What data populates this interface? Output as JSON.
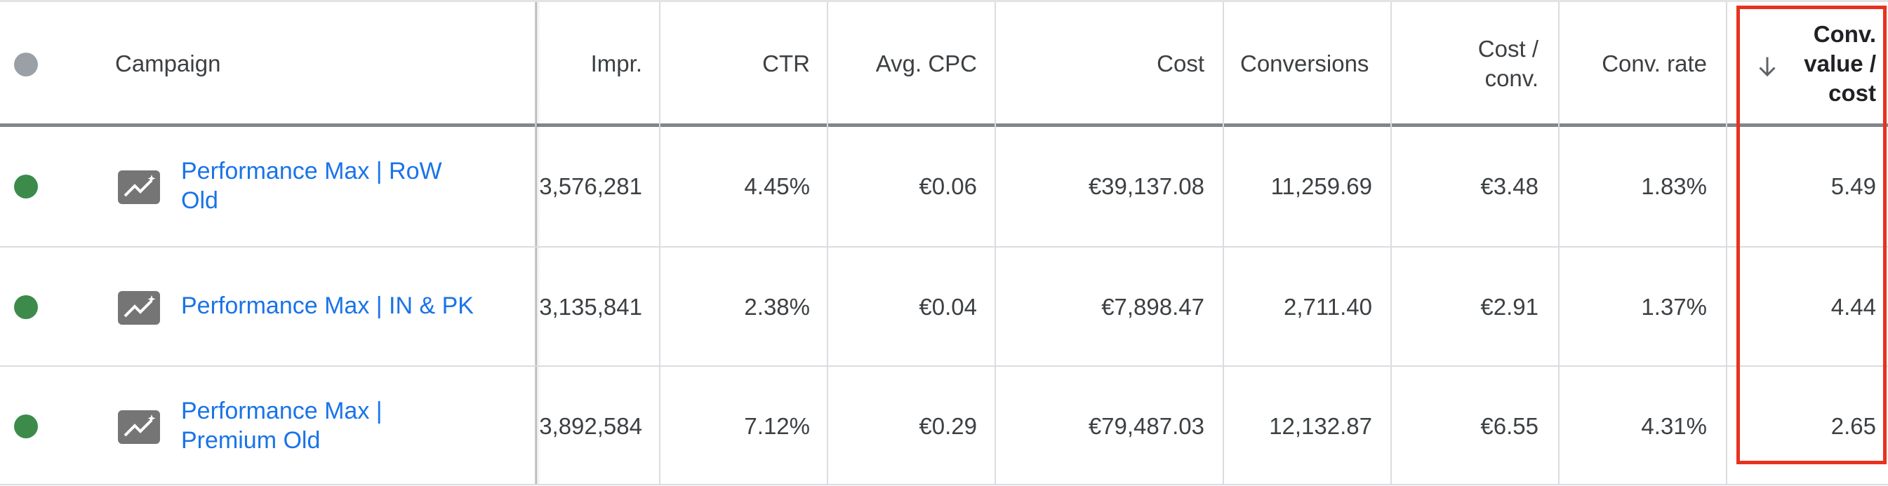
{
  "header": {
    "status_dot_color": "#9aa0a6",
    "campaign": "Campaign",
    "impr": "Impr.",
    "ctr": "CTR",
    "avg_cpc": "Avg. CPC",
    "cost": "Cost",
    "conversions": "Conversions",
    "cost_per_conv_line1": "Cost /",
    "cost_per_conv_line2": "conv.",
    "conv_rate": "Conv. rate",
    "conv_value_cost_line1": "Conv.",
    "conv_value_cost_line2": "value /",
    "conv_value_cost_line3": "cost",
    "sort_icon": "arrow-down-icon"
  },
  "rows": [
    {
      "status_color": "#3c8b4a",
      "campaign_line1": "Performance Max | RoW",
      "campaign_line2": "Old",
      "impr": "3,576,281",
      "ctr": "4.45%",
      "avg_cpc": "€0.06",
      "cost": "€39,137.08",
      "conversions": "11,259.69",
      "cost_per_conv": "€3.48",
      "conv_rate": "1.83%",
      "conv_value_cost": "5.49"
    },
    {
      "status_color": "#3c8b4a",
      "campaign_line1": "Performance Max | IN & PK",
      "campaign_line2": "",
      "impr": "3,135,841",
      "ctr": "2.38%",
      "avg_cpc": "€0.04",
      "cost": "€7,898.47",
      "conversions": "2,711.40",
      "cost_per_conv": "€2.91",
      "conv_rate": "1.37%",
      "conv_value_cost": "4.44"
    },
    {
      "status_color": "#3c8b4a",
      "campaign_line1": "Performance Max |",
      "campaign_line2": "Premium Old",
      "impr": "3,892,584",
      "ctr": "7.12%",
      "avg_cpc": "€0.29",
      "cost": "€79,487.03",
      "conversions": "12,132.87",
      "cost_per_conv": "€6.55",
      "conv_rate": "4.31%",
      "conv_value_cost": "2.65"
    }
  ],
  "highlight_color": "#e8321f"
}
